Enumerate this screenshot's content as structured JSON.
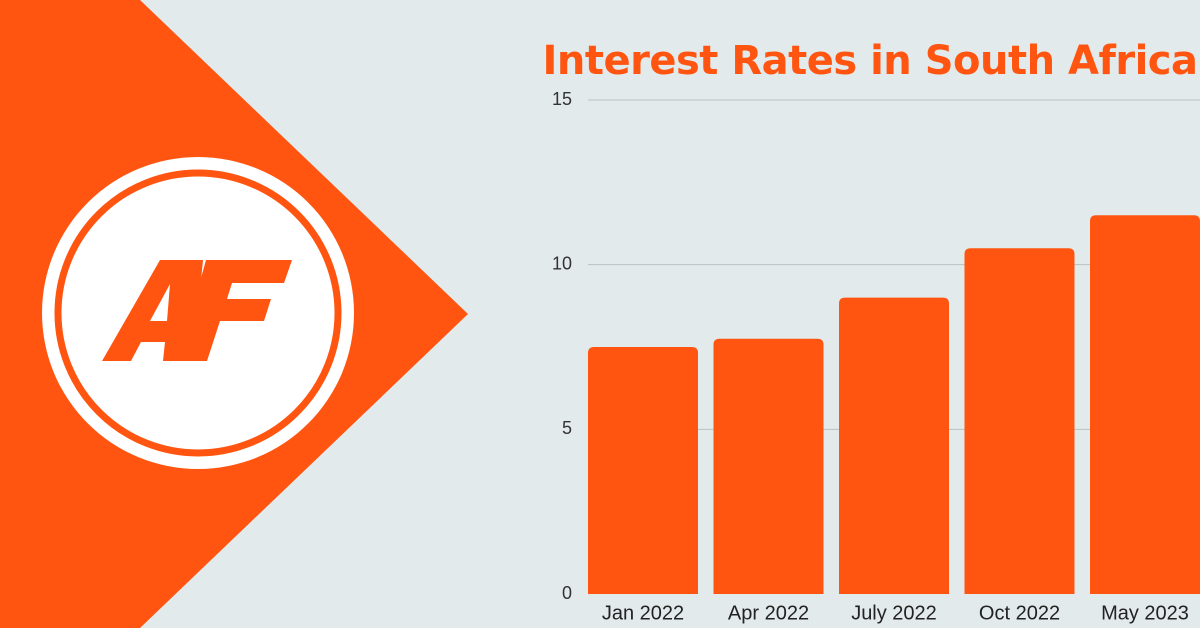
{
  "brand": {
    "logo_text": "AF",
    "color": "#ff5511",
    "background": "#e3eaeb"
  },
  "chart_data": {
    "type": "bar",
    "title": "Interest Rates in South Africa",
    "xlabel": "",
    "ylabel": "",
    "categories": [
      "Jan 2022",
      "Apr 2022",
      "July 2022",
      "Oct 2022",
      "May 2023"
    ],
    "values": [
      7.5,
      7.75,
      9.0,
      10.5,
      11.5
    ],
    "ylim": [
      0,
      15
    ],
    "yticks": [
      0,
      5,
      10,
      15
    ],
    "grid": true,
    "legend": "none",
    "bar_color": "#ff5511"
  }
}
